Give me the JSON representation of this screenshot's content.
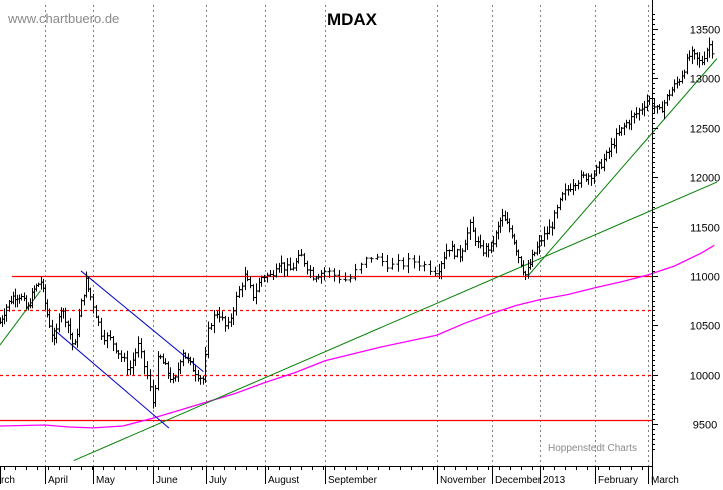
{
  "watermark": "www.chartbuero.de",
  "credit": "Hoppenstedt Charts",
  "chart_data": {
    "type": "bar",
    "subtype": "ohlc",
    "title": "MDAX",
    "xlabel": "",
    "ylabel": "",
    "ylim": [
      9130,
      13750
    ],
    "y_ticks": [
      9500,
      10000,
      10500,
      11000,
      11500,
      12000,
      12500,
      13000,
      13500
    ],
    "y_axis_position": "right",
    "grid": "vertical-dashed",
    "x_ticks": [
      "rch",
      "April",
      "May",
      "June",
      "July",
      "August",
      "September",
      "November",
      "December",
      "2013",
      "February",
      "March"
    ],
    "price_path": [
      [
        0,
        10530
      ],
      [
        0.15,
        10700
      ],
      [
        0.3,
        10800
      ],
      [
        0.45,
        10800
      ],
      [
        0.6,
        10650
      ],
      [
        0.75,
        10850
      ],
      [
        0.9,
        10950
      ],
      [
        1.05,
        10600
      ],
      [
        1.2,
        10300
      ],
      [
        1.3,
        10700
      ],
      [
        1.45,
        10550
      ],
      [
        1.6,
        10250
      ],
      [
        1.75,
        10700
      ],
      [
        1.85,
        10950
      ],
      [
        2.0,
        10700
      ],
      [
        2.15,
        10400
      ],
      [
        2.3,
        10350
      ],
      [
        2.45,
        10200
      ],
      [
        2.6,
        10050
      ],
      [
        2.75,
        10300
      ],
      [
        2.9,
        9980
      ],
      [
        3.0,
        9700
      ],
      [
        3.1,
        10200
      ],
      [
        3.25,
        10050
      ],
      [
        3.4,
        9900
      ],
      [
        3.55,
        10250
      ],
      [
        3.7,
        10100
      ],
      [
        3.85,
        10000
      ],
      [
        3.95,
        9950
      ],
      [
        4.05,
        10500
      ],
      [
        4.2,
        10650
      ],
      [
        4.35,
        10450
      ],
      [
        4.5,
        10750
      ],
      [
        4.65,
        11000
      ],
      [
        4.8,
        10800
      ],
      [
        4.95,
        11000
      ],
      [
        5.1,
        11000
      ],
      [
        5.2,
        11150
      ],
      [
        5.4,
        11050
      ],
      [
        5.6,
        11200
      ],
      [
        5.8,
        11000
      ],
      [
        6.0,
        11050
      ],
      [
        6.2,
        10950
      ],
      [
        6.4,
        11200
      ],
      [
        6.6,
        11100
      ],
      [
        6.8,
        11150
      ],
      [
        7.0,
        11050
      ],
      [
        7.2,
        11300
      ],
      [
        7.4,
        11200
      ],
      [
        7.6,
        11500
      ],
      [
        7.8,
        11250
      ],
      [
        8.0,
        11300
      ],
      [
        8.2,
        11600
      ],
      [
        8.4,
        11450
      ],
      [
        8.55,
        11200
      ],
      [
        8.7,
        11000
      ],
      [
        8.85,
        11200
      ],
      [
        9.0,
        11350
      ],
      [
        9.2,
        11500
      ],
      [
        9.4,
        11800
      ],
      [
        9.6,
        11950
      ],
      [
        9.8,
        12000
      ],
      [
        10.0,
        12050
      ],
      [
        10.2,
        12200
      ],
      [
        10.4,
        12400
      ],
      [
        10.6,
        12550
      ],
      [
        10.8,
        12650
      ],
      [
        11.0,
        12800
      ],
      [
        11.2,
        12650
      ],
      [
        11.4,
        12850
      ],
      [
        11.6,
        13000
      ],
      [
        11.8,
        13250
      ],
      [
        12.0,
        13150
      ],
      [
        12.15,
        13350
      ],
      [
        12.25,
        13250
      ]
    ],
    "moving_average": [
      [
        0,
        9480
      ],
      [
        1.0,
        9490
      ],
      [
        1.5,
        9470
      ],
      [
        2.0,
        9460
      ],
      [
        2.5,
        9480
      ],
      [
        3.0,
        9560
      ],
      [
        3.5,
        9640
      ],
      [
        4.0,
        9720
      ],
      [
        4.5,
        9810
      ],
      [
        5.0,
        9920
      ],
      [
        5.5,
        10020
      ],
      [
        6.0,
        10140
      ],
      [
        6.5,
        10280
      ],
      [
        7.0,
        10400
      ],
      [
        7.5,
        10520
      ],
      [
        8.0,
        10620
      ],
      [
        8.5,
        10700
      ],
      [
        9.0,
        10760
      ],
      [
        9.5,
        10810
      ],
      [
        10.0,
        10880
      ],
      [
        10.5,
        10940
      ],
      [
        11.0,
        11010
      ],
      [
        11.5,
        11100
      ],
      [
        12.0,
        11230
      ],
      [
        12.25,
        11310
      ]
    ],
    "horizontal_levels": [
      {
        "value": 11000,
        "style": "solid"
      },
      {
        "value": 10650,
        "style": "dashed"
      },
      {
        "value": 10000,
        "style": "dashed"
      },
      {
        "value": 9540,
        "style": "solid"
      }
    ],
    "trend_lines": [
      {
        "color": "#008000",
        "from": [
          0,
          10300
        ],
        "to": [
          0.9,
          10850
        ]
      },
      {
        "color": "#008000",
        "from": [
          1.6,
          9130
        ],
        "to": [
          12.3,
          11950
        ]
      },
      {
        "color": "#008000",
        "from": [
          8.75,
          11000
        ],
        "to": [
          12.3,
          13200
        ]
      },
      {
        "color": "#0000cc",
        "from": [
          1.75,
          11050
        ],
        "to": [
          3.95,
          10030
        ]
      },
      {
        "color": "#0000cc",
        "from": [
          1.2,
          10450
        ],
        "to": [
          3.3,
          9460
        ]
      }
    ],
    "colors": {
      "price": "#000000",
      "moving_average": "#ff00ff",
      "levels": "#ff0000",
      "support_trend": "#008000",
      "channel": "#0000cc",
      "grid": "#808080",
      "watermark": "#8a8a8a"
    }
  }
}
